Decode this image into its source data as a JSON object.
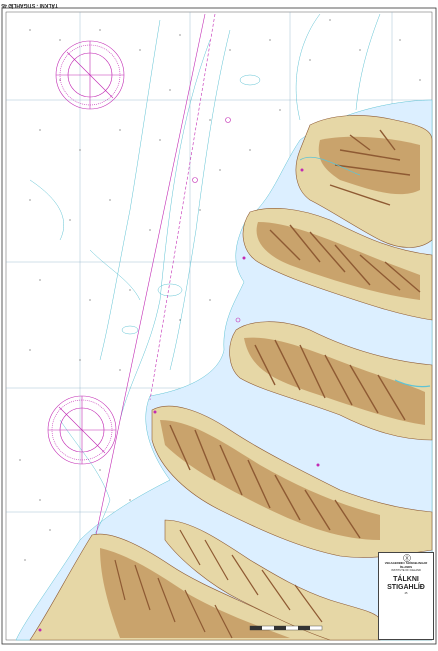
{
  "chart": {
    "header_title": "TÁLKNI - STIGAHLÍÐ 45",
    "title_line_1": "TÁLKNI",
    "title_line_2": "STIGAHLÍÐ",
    "institute": "VEGAGERÐIN / SJÓMÆLINGAR ÍSLANDS",
    "institute_en": "INSTITUTE OF ICELAND",
    "chart_number": "45",
    "colors": {
      "sea": "#ffffff",
      "shallow": "#dcefff",
      "contour": "#5fc3d4",
      "land_light": "#e6d7a6",
      "land_mid": "#c9a36c",
      "land_dark": "#8e5a33",
      "magenta": "#c22ab4",
      "grid": "#8ab0c8"
    }
  }
}
